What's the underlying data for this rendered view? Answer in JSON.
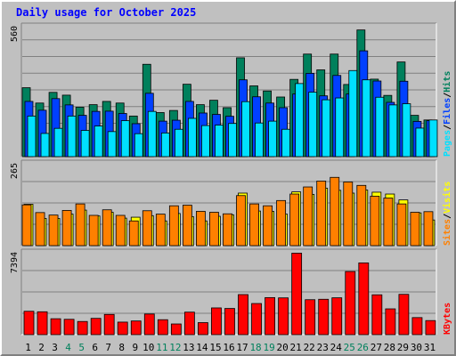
{
  "title": "Daily usage for October 2025",
  "colors": {
    "hits": "#00805c",
    "files": "#0040ff",
    "pages": "#00e0ff",
    "visits": "#ffff00",
    "sites": "#ff8000",
    "kbytes": "#ff0000",
    "weekend_label": "#00805c",
    "weekday_label": "#000000"
  },
  "chart_data": [
    {
      "type": "bar",
      "panel": "pages-files-hits",
      "ymax_label": "560",
      "ylim": [
        0,
        560
      ],
      "categories": [
        "1",
        "2",
        "3",
        "4",
        "5",
        "6",
        "7",
        "8",
        "9",
        "10",
        "11",
        "12",
        "13",
        "14",
        "15",
        "16",
        "17",
        "18",
        "19",
        "20",
        "21",
        "22",
        "23",
        "24",
        "25",
        "26",
        "27",
        "28",
        "29",
        "30",
        "31"
      ],
      "weekend_days": [
        "4",
        "5",
        "11",
        "12",
        "18",
        "19",
        "25",
        "26"
      ],
      "legend": [
        "Pages",
        "/",
        "Files",
        "/",
        "Hits"
      ],
      "series": [
        {
          "name": "Hits",
          "values": [
            297,
            231,
            277,
            265,
            213,
            224,
            238,
            231,
            175,
            398,
            190,
            199,
            312,
            224,
            243,
            211,
            426,
            305,
            283,
            257,
            333,
            442,
            374,
            442,
            311,
            546,
            334,
            264,
            408,
            178,
            158
          ]
        },
        {
          "name": "Files",
          "values": [
            238,
            200,
            250,
            223,
            178,
            195,
            196,
            186,
            142,
            273,
            153,
            157,
            238,
            188,
            182,
            174,
            331,
            258,
            231,
            211,
            270,
            359,
            262,
            350,
            270,
            456,
            326,
            234,
            325,
            152,
            155
          ]
        },
        {
          "name": "Pages",
          "values": [
            175,
            100,
            122,
            175,
            113,
            132,
            108,
            155,
            99,
            195,
            102,
            118,
            165,
            134,
            136,
            143,
            237,
            145,
            153,
            118,
            315,
            278,
            245,
            253,
            371,
            331,
            256,
            223,
            228,
            123,
            158
          ]
        }
      ]
    },
    {
      "type": "bar",
      "panel": "sites-visits",
      "ymax_label": "265",
      "ylim": [
        0,
        265
      ],
      "categories": [
        "1",
        "2",
        "3",
        "4",
        "5",
        "6",
        "7",
        "8",
        "9",
        "10",
        "11",
        "12",
        "13",
        "14",
        "15",
        "16",
        "17",
        "18",
        "19",
        "20",
        "21",
        "22",
        "23",
        "24",
        "25",
        "26",
        "27",
        "28",
        "29",
        "30",
        "31"
      ],
      "legend": [
        "Sites",
        "/",
        "Visits"
      ],
      "series": [
        {
          "name": "Visits",
          "values": [
            134,
            88,
            88,
            102,
            115,
            96,
            108,
            89,
            92,
            97,
            80,
            104,
            94,
            80,
            95,
            100,
            170,
            112,
            111,
            102,
            174,
            166,
            186,
            179,
            170,
            180,
            173,
            167,
            148,
            106,
            83
          ]
        },
        {
          "name": "Sites",
          "values": [
            132,
            107,
            99,
            114,
            135,
            98,
            116,
            98,
            80,
            113,
            102,
            129,
            131,
            111,
            108,
            103,
            162,
            135,
            129,
            146,
            167,
            190,
            209,
            221,
            206,
            195,
            160,
            154,
            135,
            108,
            110
          ]
        }
      ]
    },
    {
      "type": "bar",
      "panel": "kbytes",
      "ymax_label": "7394",
      "ylim": [
        0,
        7394
      ],
      "categories": [
        "1",
        "2",
        "3",
        "4",
        "5",
        "6",
        "7",
        "8",
        "9",
        "10",
        "11",
        "12",
        "13",
        "14",
        "15",
        "16",
        "17",
        "18",
        "19",
        "20",
        "21",
        "22",
        "23",
        "24",
        "25",
        "26",
        "27",
        "28",
        "29",
        "30",
        "31"
      ],
      "legend": [
        "KBytes"
      ],
      "series": [
        {
          "name": "KBytes",
          "values": [
            2110,
            2065,
            1436,
            1384,
            1188,
            1470,
            1826,
            1131,
            1235,
            1862,
            1349,
            964,
            2032,
            1086,
            2414,
            2364,
            3617,
            2810,
            3345,
            3320,
            7357,
            3155,
            3193,
            3327,
            5700,
            6479,
            3598,
            2329,
            3638,
            1540,
            1270
          ]
        }
      ]
    }
  ]
}
